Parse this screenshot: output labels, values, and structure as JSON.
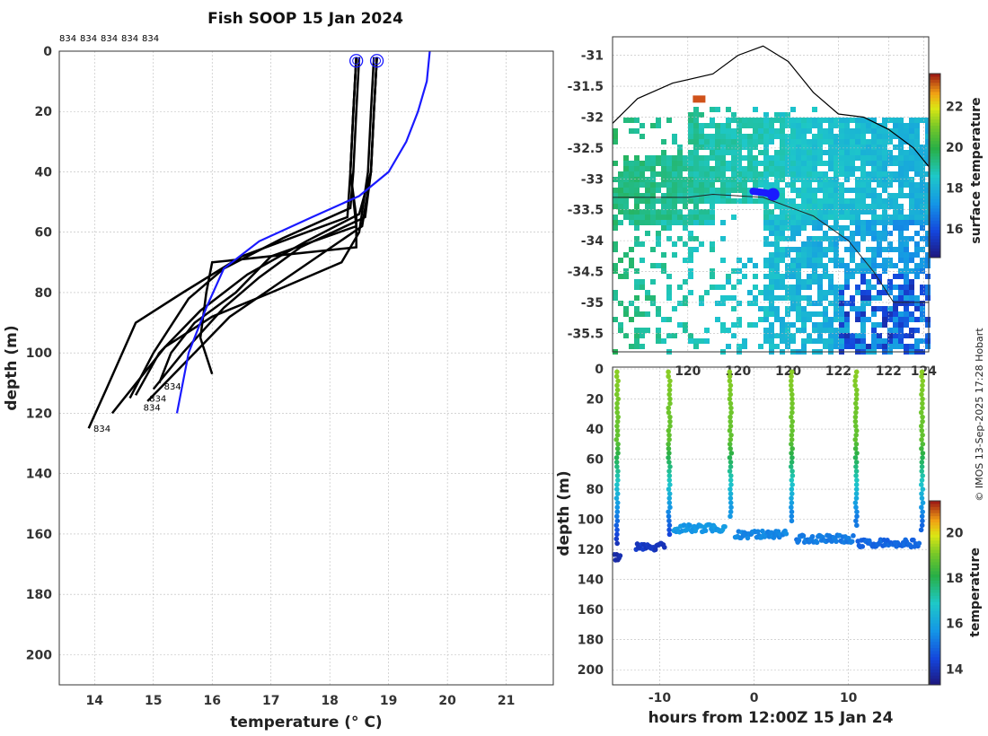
{
  "title": "Fish SOOP 15 Jan 2024",
  "credit": "© IMOS 13-Sep-2025 17:28 Hobart",
  "colors": {
    "profile": "#000000",
    "climatology": "#1a1aff",
    "coast": "#000000"
  },
  "chart_data": [
    {
      "id": "profiles",
      "type": "line",
      "title": "Fish SOOP 15 Jan 2024",
      "xlabel": "temperature (° C)",
      "ylabel": "depth (m)",
      "xlim": [
        13.4,
        21.8
      ],
      "ylim": [
        210,
        0
      ],
      "xticks": [
        14,
        15,
        16,
        17,
        18,
        19,
        20,
        21
      ],
      "yticks": [
        0,
        20,
        40,
        60,
        80,
        100,
        120,
        140,
        160,
        180,
        200
      ],
      "top_labels": [
        "834",
        "834",
        "834",
        "834",
        "834"
      ],
      "end_labels": [
        {
          "text": "834",
          "t": 13.95,
          "d": 125
        },
        {
          "text": "834",
          "t": 14.8,
          "d": 118
        },
        {
          "text": "834",
          "t": 15.15,
          "d": 111
        },
        {
          "text": "834",
          "t": 14.9,
          "d": 115
        }
      ],
      "surface_markers": [
        {
          "t": 18.45,
          "d": 2
        },
        {
          "t": 18.8,
          "d": 2
        }
      ],
      "series": [
        {
          "name": "p1",
          "t": [
            18.45,
            18.4,
            18.35,
            18.3,
            16.5,
            15.5,
            14.7,
            14.2,
            13.9
          ],
          "d": [
            2,
            20,
            40,
            55,
            68,
            80,
            90,
            112,
            125
          ]
        },
        {
          "name": "p2",
          "t": [
            18.5,
            18.45,
            18.4,
            18.35,
            17.2,
            16.2,
            15.6,
            15.0,
            14.6
          ],
          "d": [
            2,
            20,
            40,
            52,
            62,
            72,
            82,
            100,
            115
          ]
        },
        {
          "name": "p3",
          "t": [
            18.45,
            18.4,
            18.35,
            18.45,
            17.0,
            16.4,
            15.7,
            15.3,
            15.1
          ],
          "d": [
            2,
            20,
            40,
            58,
            68,
            80,
            90,
            100,
            110
          ]
        },
        {
          "name": "p4",
          "t": [
            18.8,
            18.75,
            18.7,
            18.6,
            17.5,
            16.8,
            16.2,
            15.5,
            15.0
          ],
          "d": [
            2,
            20,
            40,
            55,
            65,
            75,
            85,
            100,
            112
          ]
        },
        {
          "name": "p5",
          "t": [
            18.8,
            18.75,
            18.7,
            18.55,
            17.8,
            16.9,
            16.3,
            15.7,
            14.9
          ],
          "d": [
            2,
            20,
            40,
            58,
            68,
            80,
            88,
            100,
            116
          ]
        },
        {
          "name": "p6",
          "t": [
            18.75,
            18.7,
            18.65,
            18.5,
            18.2,
            17.0,
            16.0,
            15.2,
            14.3
          ],
          "d": [
            2,
            20,
            40,
            60,
            70,
            80,
            88,
            98,
            120
          ]
        },
        {
          "name": "p7",
          "t": [
            18.45,
            18.4,
            18.35,
            18.45,
            18.45,
            16.0,
            15.9,
            15.8,
            16.0
          ],
          "d": [
            2,
            20,
            40,
            55,
            65,
            70,
            80,
            95,
            107
          ]
        },
        {
          "name": "p8",
          "t": [
            18.8,
            18.75,
            18.7,
            18.5,
            17.6,
            16.6,
            15.8,
            15.1,
            14.7
          ],
          "d": [
            2,
            20,
            40,
            54,
            63,
            74,
            86,
            100,
            114
          ]
        }
      ],
      "climatology": {
        "t": [
          19.7,
          19.65,
          19.5,
          19.3,
          19.0,
          18.5,
          17.7,
          16.8,
          16.2,
          15.9,
          15.6,
          15.4
        ],
        "d": [
          0,
          10,
          20,
          30,
          40,
          48,
          55,
          63,
          72,
          85,
          100,
          120
        ]
      }
    },
    {
      "id": "sst_map",
      "type": "heatmap",
      "colorbar_label": "surface temperature",
      "colorbar_ticks": [
        16,
        18,
        20,
        22
      ],
      "colorbar_range": [
        14.6,
        23.6
      ],
      "xticks": [
        "120",
        "120",
        "120",
        "122",
        "122",
        "124"
      ],
      "xticks_val": [
        119.5,
        120.5,
        121.5,
        122.5,
        123.5,
        124.2
      ],
      "yticks": [
        -31,
        -31.5,
        -32,
        -32.5,
        -33,
        -33.5,
        -34,
        -34.5,
        -35,
        -35.5
      ],
      "xlim": [
        118.0,
        124.3
      ],
      "ylim": [
        -35.8,
        -30.7
      ],
      "track": [
        [
          120.8,
          -33.2
        ],
        [
          121.0,
          -33.22
        ],
        [
          121.2,
          -33.25
        ]
      ],
      "coast": [
        [
          118.0,
          -32.1
        ],
        [
          118.5,
          -31.7
        ],
        [
          119.2,
          -31.45
        ],
        [
          120.0,
          -31.3
        ],
        [
          120.5,
          -31.0
        ],
        [
          121.0,
          -30.85
        ],
        [
          121.5,
          -31.1
        ],
        [
          122.0,
          -31.6
        ],
        [
          122.5,
          -31.95
        ],
        [
          123.0,
          -32.0
        ],
        [
          123.5,
          -32.2
        ],
        [
          124.0,
          -32.5
        ],
        [
          124.3,
          -32.8
        ]
      ],
      "dashed_line": [
        [
          118.0,
          -33.3
        ],
        [
          119.5,
          -33.3
        ],
        [
          120.0,
          -33.25
        ],
        [
          121.0,
          -33.3
        ],
        [
          122.0,
          -33.6
        ],
        [
          122.7,
          -34.0
        ],
        [
          123.2,
          -34.5
        ],
        [
          123.6,
          -35.0
        ],
        [
          124.0,
          -35.0
        ],
        [
          124.3,
          -35.0
        ]
      ]
    },
    {
      "id": "depth_time",
      "type": "scatter",
      "xlabel": "hours from 12:00Z 15 Jan 24",
      "ylabel": "depth (m)",
      "colorbar_label": "temperature",
      "colorbar_ticks": [
        14,
        16,
        18,
        20
      ],
      "colorbar_range": [
        13.3,
        21.4
      ],
      "xlim": [
        -15,
        18.5
      ],
      "ylim": [
        210,
        0
      ],
      "xticks": [
        -10,
        0,
        10
      ],
      "yticks": [
        0,
        20,
        40,
        60,
        80,
        100,
        120,
        140,
        160,
        180,
        200
      ],
      "casts": [
        {
          "h": -14.5,
          "bottom": 125,
          "tbot": 13.9,
          "span": [
            -14.8,
            -14.2
          ]
        },
        {
          "h": -9.0,
          "bottom": 118,
          "tbot": 14.2,
          "span": [
            -12.5,
            -9.5
          ]
        },
        {
          "h": -2.5,
          "bottom": 106,
          "tbot": 15.8,
          "span": [
            -8.5,
            -3.0
          ]
        },
        {
          "h": 4.0,
          "bottom": 110,
          "tbot": 15.5,
          "span": [
            -2.0,
            3.5
          ]
        },
        {
          "h": 10.8,
          "bottom": 113,
          "tbot": 15.3,
          "span": [
            4.5,
            10.5
          ]
        },
        {
          "h": 17.8,
          "bottom": 116,
          "tbot": 15.0,
          "span": [
            11.0,
            17.5
          ]
        }
      ]
    }
  ]
}
